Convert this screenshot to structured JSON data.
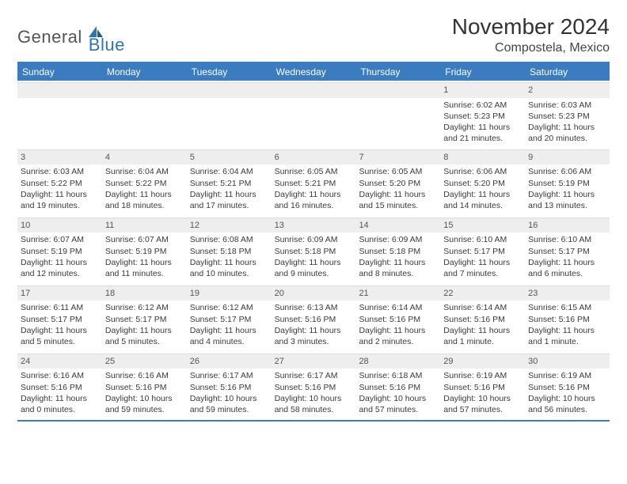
{
  "logo": {
    "general": "General",
    "blue": "Blue"
  },
  "title": {
    "month": "November 2024",
    "location": "Compostela, Mexico"
  },
  "colors": {
    "header_bg": "#3b7bbf",
    "header_text": "#ffffff",
    "daybar_bg": "#eeeeee",
    "body_text": "#3a3a3a",
    "logo_gray": "#555555",
    "logo_blue": "#2e75b6"
  },
  "weekdays": [
    "Sunday",
    "Monday",
    "Tuesday",
    "Wednesday",
    "Thursday",
    "Friday",
    "Saturday"
  ],
  "weeks": [
    [
      null,
      null,
      null,
      null,
      null,
      {
        "n": "1",
        "sr": "Sunrise: 6:02 AM",
        "ss": "Sunset: 5:23 PM",
        "d1": "Daylight: 11 hours",
        "d2": "and 21 minutes."
      },
      {
        "n": "2",
        "sr": "Sunrise: 6:03 AM",
        "ss": "Sunset: 5:23 PM",
        "d1": "Daylight: 11 hours",
        "d2": "and 20 minutes."
      }
    ],
    [
      {
        "n": "3",
        "sr": "Sunrise: 6:03 AM",
        "ss": "Sunset: 5:22 PM",
        "d1": "Daylight: 11 hours",
        "d2": "and 19 minutes."
      },
      {
        "n": "4",
        "sr": "Sunrise: 6:04 AM",
        "ss": "Sunset: 5:22 PM",
        "d1": "Daylight: 11 hours",
        "d2": "and 18 minutes."
      },
      {
        "n": "5",
        "sr": "Sunrise: 6:04 AM",
        "ss": "Sunset: 5:21 PM",
        "d1": "Daylight: 11 hours",
        "d2": "and 17 minutes."
      },
      {
        "n": "6",
        "sr": "Sunrise: 6:05 AM",
        "ss": "Sunset: 5:21 PM",
        "d1": "Daylight: 11 hours",
        "d2": "and 16 minutes."
      },
      {
        "n": "7",
        "sr": "Sunrise: 6:05 AM",
        "ss": "Sunset: 5:20 PM",
        "d1": "Daylight: 11 hours",
        "d2": "and 15 minutes."
      },
      {
        "n": "8",
        "sr": "Sunrise: 6:06 AM",
        "ss": "Sunset: 5:20 PM",
        "d1": "Daylight: 11 hours",
        "d2": "and 14 minutes."
      },
      {
        "n": "9",
        "sr": "Sunrise: 6:06 AM",
        "ss": "Sunset: 5:19 PM",
        "d1": "Daylight: 11 hours",
        "d2": "and 13 minutes."
      }
    ],
    [
      {
        "n": "10",
        "sr": "Sunrise: 6:07 AM",
        "ss": "Sunset: 5:19 PM",
        "d1": "Daylight: 11 hours",
        "d2": "and 12 minutes."
      },
      {
        "n": "11",
        "sr": "Sunrise: 6:07 AM",
        "ss": "Sunset: 5:19 PM",
        "d1": "Daylight: 11 hours",
        "d2": "and 11 minutes."
      },
      {
        "n": "12",
        "sr": "Sunrise: 6:08 AM",
        "ss": "Sunset: 5:18 PM",
        "d1": "Daylight: 11 hours",
        "d2": "and 10 minutes."
      },
      {
        "n": "13",
        "sr": "Sunrise: 6:09 AM",
        "ss": "Sunset: 5:18 PM",
        "d1": "Daylight: 11 hours",
        "d2": "and 9 minutes."
      },
      {
        "n": "14",
        "sr": "Sunrise: 6:09 AM",
        "ss": "Sunset: 5:18 PM",
        "d1": "Daylight: 11 hours",
        "d2": "and 8 minutes."
      },
      {
        "n": "15",
        "sr": "Sunrise: 6:10 AM",
        "ss": "Sunset: 5:17 PM",
        "d1": "Daylight: 11 hours",
        "d2": "and 7 minutes."
      },
      {
        "n": "16",
        "sr": "Sunrise: 6:10 AM",
        "ss": "Sunset: 5:17 PM",
        "d1": "Daylight: 11 hours",
        "d2": "and 6 minutes."
      }
    ],
    [
      {
        "n": "17",
        "sr": "Sunrise: 6:11 AM",
        "ss": "Sunset: 5:17 PM",
        "d1": "Daylight: 11 hours",
        "d2": "and 5 minutes."
      },
      {
        "n": "18",
        "sr": "Sunrise: 6:12 AM",
        "ss": "Sunset: 5:17 PM",
        "d1": "Daylight: 11 hours",
        "d2": "and 5 minutes."
      },
      {
        "n": "19",
        "sr": "Sunrise: 6:12 AM",
        "ss": "Sunset: 5:17 PM",
        "d1": "Daylight: 11 hours",
        "d2": "and 4 minutes."
      },
      {
        "n": "20",
        "sr": "Sunrise: 6:13 AM",
        "ss": "Sunset: 5:16 PM",
        "d1": "Daylight: 11 hours",
        "d2": "and 3 minutes."
      },
      {
        "n": "21",
        "sr": "Sunrise: 6:14 AM",
        "ss": "Sunset: 5:16 PM",
        "d1": "Daylight: 11 hours",
        "d2": "and 2 minutes."
      },
      {
        "n": "22",
        "sr": "Sunrise: 6:14 AM",
        "ss": "Sunset: 5:16 PM",
        "d1": "Daylight: 11 hours",
        "d2": "and 1 minute."
      },
      {
        "n": "23",
        "sr": "Sunrise: 6:15 AM",
        "ss": "Sunset: 5:16 PM",
        "d1": "Daylight: 11 hours",
        "d2": "and 1 minute."
      }
    ],
    [
      {
        "n": "24",
        "sr": "Sunrise: 6:16 AM",
        "ss": "Sunset: 5:16 PM",
        "d1": "Daylight: 11 hours",
        "d2": "and 0 minutes."
      },
      {
        "n": "25",
        "sr": "Sunrise: 6:16 AM",
        "ss": "Sunset: 5:16 PM",
        "d1": "Daylight: 10 hours",
        "d2": "and 59 minutes."
      },
      {
        "n": "26",
        "sr": "Sunrise: 6:17 AM",
        "ss": "Sunset: 5:16 PM",
        "d1": "Daylight: 10 hours",
        "d2": "and 59 minutes."
      },
      {
        "n": "27",
        "sr": "Sunrise: 6:17 AM",
        "ss": "Sunset: 5:16 PM",
        "d1": "Daylight: 10 hours",
        "d2": "and 58 minutes."
      },
      {
        "n": "28",
        "sr": "Sunrise: 6:18 AM",
        "ss": "Sunset: 5:16 PM",
        "d1": "Daylight: 10 hours",
        "d2": "and 57 minutes."
      },
      {
        "n": "29",
        "sr": "Sunrise: 6:19 AM",
        "ss": "Sunset: 5:16 PM",
        "d1": "Daylight: 10 hours",
        "d2": "and 57 minutes."
      },
      {
        "n": "30",
        "sr": "Sunrise: 6:19 AM",
        "ss": "Sunset: 5:16 PM",
        "d1": "Daylight: 10 hours",
        "d2": "and 56 minutes."
      }
    ]
  ]
}
